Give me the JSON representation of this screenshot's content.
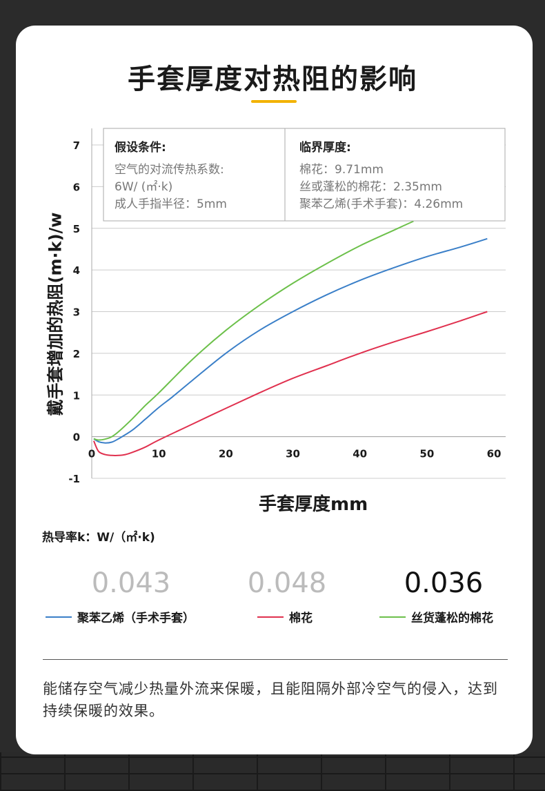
{
  "title": "手套厚度对热阻的影响",
  "chart_data": {
    "type": "line",
    "xlabel": "手套厚度mm",
    "ylabel": "戴手套增加的热阻(m·k)/w",
    "xlim": [
      0,
      60
    ],
    "ylim": [
      -1,
      7
    ],
    "x_ticks": [
      "0",
      "10",
      "20",
      "30",
      "40",
      "50",
      "60"
    ],
    "y_ticks": [
      "7",
      "6",
      "5",
      "4",
      "3",
      "2",
      "1",
      "0",
      "-1"
    ],
    "grid": true,
    "series": [
      {
        "name": "聚苯乙烯（手术手套）",
        "color": "#3a7fc8",
        "x": [
          0.3,
          1,
          2,
          3,
          4,
          6,
          8,
          10,
          12,
          15,
          20,
          25,
          30,
          35,
          40,
          45,
          50,
          55,
          59
        ],
        "y": [
          -0.05,
          -0.12,
          -0.15,
          -0.13,
          -0.05,
          0.15,
          0.42,
          0.7,
          0.95,
          1.35,
          2.0,
          2.55,
          3.0,
          3.4,
          3.75,
          4.05,
          4.32,
          4.55,
          4.75
        ]
      },
      {
        "name": "棉花",
        "color": "#e0304e",
        "x": [
          0.3,
          1,
          2,
          3,
          4,
          5,
          6,
          8,
          10,
          15,
          20,
          25,
          30,
          35,
          40,
          45,
          50,
          55,
          59
        ],
        "y": [
          -0.1,
          -0.35,
          -0.43,
          -0.45,
          -0.45,
          -0.43,
          -0.38,
          -0.25,
          -0.08,
          0.3,
          0.68,
          1.05,
          1.4,
          1.7,
          2.0,
          2.27,
          2.52,
          2.78,
          3.0
        ]
      },
      {
        "name": "丝货蓬松的棉花",
        "color": "#6cc04a",
        "x": [
          0.3,
          1,
          2,
          3,
          4,
          6,
          8,
          10,
          15,
          20,
          25,
          30,
          35,
          40,
          45,
          48
        ],
        "y": [
          -0.05,
          -0.08,
          -0.06,
          0.0,
          0.12,
          0.42,
          0.75,
          1.05,
          1.85,
          2.55,
          3.15,
          3.68,
          4.15,
          4.58,
          4.95,
          5.17
        ]
      }
    ]
  },
  "assumptions_box": {
    "heading": "假设条件:",
    "lines": [
      "空气的对流传热系数:",
      "6W/ (㎡·k)",
      "成人手指半径：5mm"
    ]
  },
  "critical_box": {
    "heading": "临界厚度:",
    "lines": [
      "棉花：9.71mm",
      "丝或蓬松的棉花：2.35mm",
      "聚苯乙烯(手术手套)：4.26mm"
    ]
  },
  "conductivity": {
    "caption": "热导率k：W/（㎡·k)",
    "values": [
      "0.043",
      "0.048",
      "0.036"
    ]
  },
  "legend": [
    {
      "label": "聚苯乙烯（手术手套）",
      "color": "#3a7fc8"
    },
    {
      "label": "棉花",
      "color": "#e0304e"
    },
    {
      "label": "丝货蓬松的棉花",
      "color": "#6cc04a"
    }
  ],
  "footer": "能储存空气减少热量外流来保暖，且能阻隔外部冷空气的侵入，达到持续保暖的效果。"
}
